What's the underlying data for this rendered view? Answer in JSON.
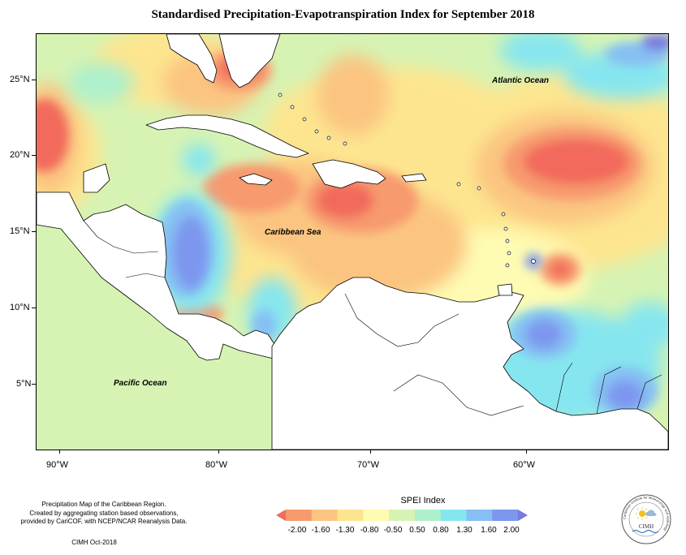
{
  "title": "Standardised Precipitation-Evapotranspiration Index for September 2018",
  "ocean_labels": {
    "atlantic": "Atlantic Ocean",
    "caribbean": "Caribbean Sea",
    "pacific": "Pacific Ocean"
  },
  "axes": {
    "longitude": [
      "90°W",
      "80°W",
      "70°W",
      "60°W"
    ],
    "latitude": [
      "25°N",
      "20°N",
      "15°N",
      "10°N",
      "5°N"
    ]
  },
  "credits": {
    "line1": "Precipitation Map of the Caribbean Region.",
    "line2": "Created by aggregating station based observations,",
    "line3": "provided by CariCOF, with NCEP/NCAR Reanalysis Data.",
    "date": "CIMH Oct-2018"
  },
  "legend": {
    "title": "SPEI Index",
    "ticks": [
      "-2.00",
      "-1.60",
      "-1.30",
      "-0.80",
      "-0.50",
      "0.50",
      "0.80",
      "1.30",
      "1.60",
      "2.00"
    ],
    "colors": [
      "#f26b5b",
      "#f79a6e",
      "#fbc581",
      "#fde58f",
      "#fefbb2",
      "#d6f3b3",
      "#aef0cc",
      "#86e6ef",
      "#86bff3",
      "#7d97ef",
      "#7b78e0"
    ]
  },
  "logo": {
    "text": "CIMH",
    "ring_text": "Caribbean Institute for Meteorology and Hydrology"
  }
}
